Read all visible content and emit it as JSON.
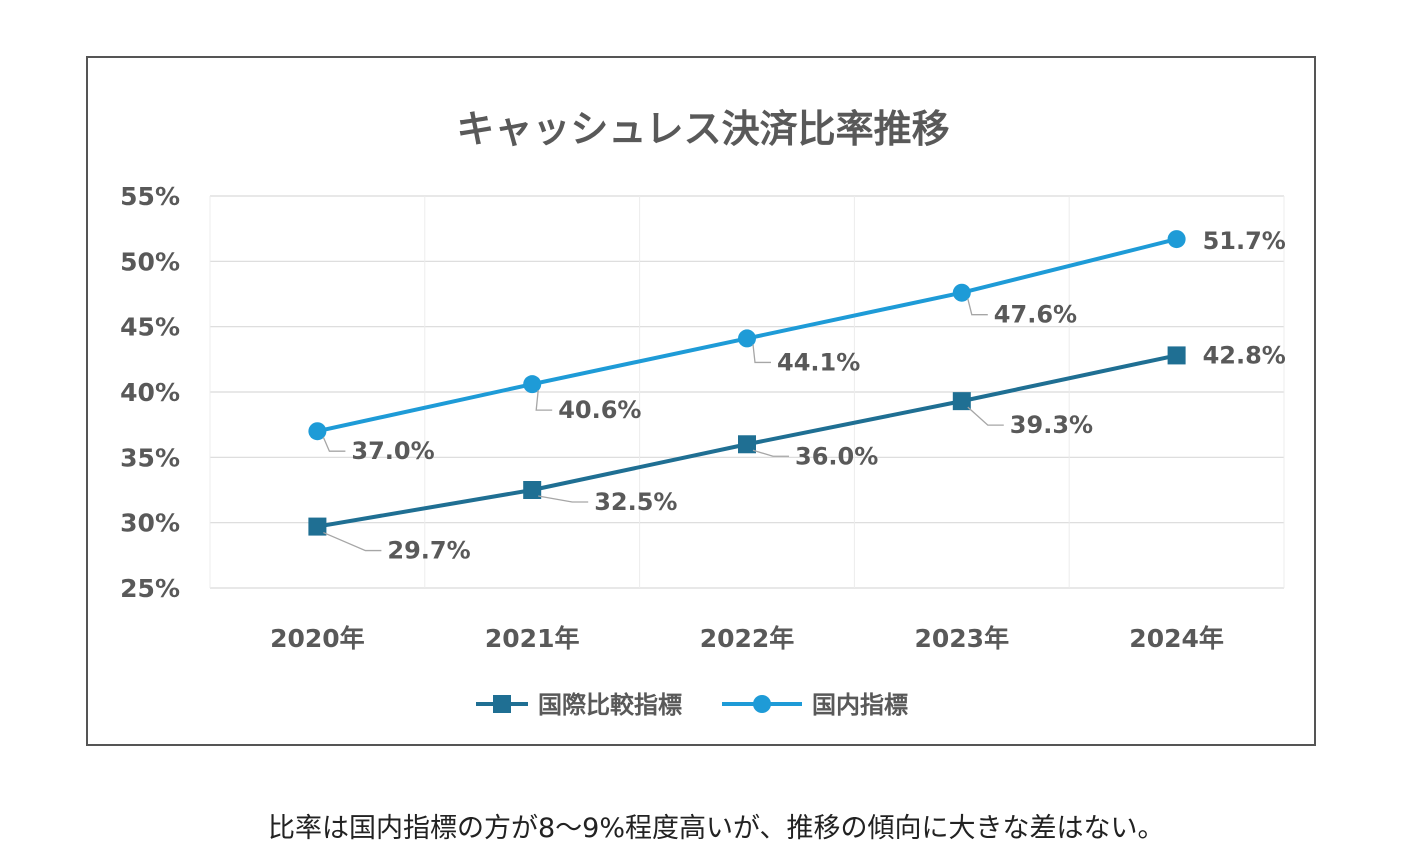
{
  "chart_data": {
    "type": "line",
    "title": "キャッシュレス決済比率推移",
    "categories": [
      "2020年",
      "2021年",
      "2022年",
      "2023年",
      "2024年"
    ],
    "ylim": [
      25,
      55
    ],
    "yticks": [
      25,
      30,
      35,
      40,
      45,
      50,
      55
    ],
    "ytick_labels": [
      "25%",
      "30%",
      "35%",
      "40%",
      "45%",
      "50%",
      "55%"
    ],
    "grid": true,
    "legend_position": "bottom",
    "series": [
      {
        "name": "国際比較指標",
        "marker": "square",
        "color": "#1F6F93",
        "values": [
          29.7,
          32.5,
          36.0,
          39.3,
          42.8
        ],
        "labels": [
          "29.7%",
          "32.5%",
          "36.0%",
          "39.3%",
          "42.8%"
        ]
      },
      {
        "name": "国内指標",
        "marker": "circle",
        "color": "#1E9BD7",
        "values": [
          37.0,
          40.6,
          44.1,
          47.6,
          51.7
        ],
        "labels": [
          "37.0%",
          "40.6%",
          "44.1%",
          "47.6%",
          "51.7%"
        ]
      }
    ]
  },
  "caption": "比率は国内指標の方が8～9%程度高いが、推移の傾向に大きな差はない。"
}
